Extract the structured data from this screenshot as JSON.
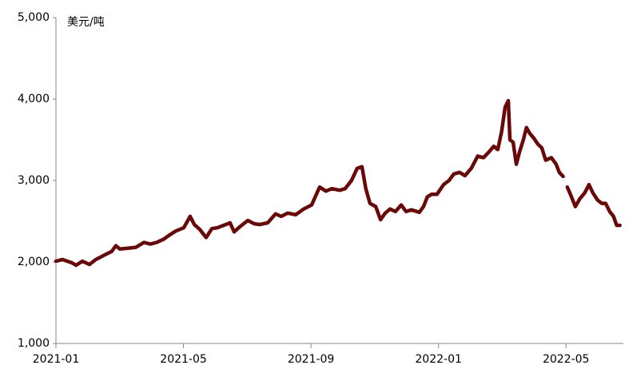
{
  "chart_data": {
    "type": "line",
    "y_label": "美元/吨",
    "x": [
      0,
      0.2,
      0.5,
      0.63,
      0.83,
      1.05,
      1.25,
      1.5,
      1.75,
      1.88,
      2.0,
      2.26,
      2.51,
      2.76,
      2.96,
      3.16,
      3.38,
      3.56,
      3.76,
      4.01,
      4.21,
      4.34,
      4.51,
      4.71,
      4.89,
      5.06,
      5.26,
      5.46,
      5.59,
      5.76,
      6.02,
      6.22,
      6.39,
      6.64,
      6.89,
      7.07,
      7.27,
      7.52,
      7.77,
      8.02,
      8.27,
      8.47,
      8.65,
      8.9,
      9.07,
      9.27,
      9.45,
      9.6,
      9.72,
      9.85,
      10.03,
      10.18,
      10.33,
      10.48,
      10.65,
      10.83,
      10.98,
      11.15,
      11.4,
      11.53,
      11.65,
      11.78,
      11.95,
      12.16,
      12.33,
      12.48,
      12.66,
      12.83,
      13.03,
      13.23,
      13.41,
      13.58,
      13.73,
      13.86,
      13.98,
      14.09,
      14.19,
      14.24,
      14.34,
      14.44,
      14.54,
      14.66,
      14.76,
      14.86,
      14.99,
      15.11,
      15.24,
      15.36,
      15.54,
      15.69,
      15.79,
      15.91,
      15.97,
      16.04,
      16.17,
      16.29,
      16.44,
      16.59,
      16.72,
      16.84,
      16.99,
      17.12,
      17.24,
      17.37,
      17.49,
      17.59,
      17.69
    ],
    "series": [
      {
        "color": "#6b0808",
        "values": [
          2010,
          2030,
          1990,
          1960,
          2010,
          1970,
          2030,
          2080,
          2130,
          2200,
          2160,
          2170,
          2180,
          2240,
          2220,
          2240,
          2280,
          2330,
          2380,
          2420,
          2560,
          2460,
          2400,
          2300,
          2410,
          2420,
          2450,
          2480,
          2370,
          2430,
          2510,
          2470,
          2460,
          2480,
          2590,
          2560,
          2600,
          2580,
          2650,
          2700,
          2920,
          2870,
          2900,
          2880,
          2900,
          3000,
          3150,
          3170,
          2900,
          2720,
          2680,
          2520,
          2600,
          2650,
          2620,
          2700,
          2620,
          2640,
          2610,
          2680,
          2800,
          2830,
          2830,
          2950,
          3000,
          3080,
          3100,
          3060,
          3150,
          3300,
          3280,
          3350,
          3420,
          3380,
          3600,
          3900,
          3980,
          3500,
          3470,
          3200,
          3350,
          3500,
          3650,
          3580,
          3520,
          3450,
          3400,
          3250,
          3280,
          3200,
          3100,
          3050,
          null,
          2920,
          2800,
          2680,
          2780,
          2850,
          2950,
          2850,
          2760,
          2720,
          2720,
          2620,
          2560,
          2450,
          2450
        ]
      }
    ],
    "xlim": [
      0,
      17.8
    ],
    "xticks": [
      {
        "value": 0,
        "label": "2021-01"
      },
      {
        "value": 4,
        "label": "2021-05"
      },
      {
        "value": 8,
        "label": "2021-09"
      },
      {
        "value": 12,
        "label": "2022-01"
      },
      {
        "value": 16,
        "label": "2022-05"
      }
    ],
    "ylim": [
      1000,
      5000
    ],
    "yticks": [
      {
        "value": 1000,
        "label": "1,000"
      },
      {
        "value": 2000,
        "label": "2,000"
      },
      {
        "value": 3000,
        "label": "3,000"
      },
      {
        "value": 4000,
        "label": "4,000"
      },
      {
        "value": 5000,
        "label": "5,000"
      }
    ]
  }
}
